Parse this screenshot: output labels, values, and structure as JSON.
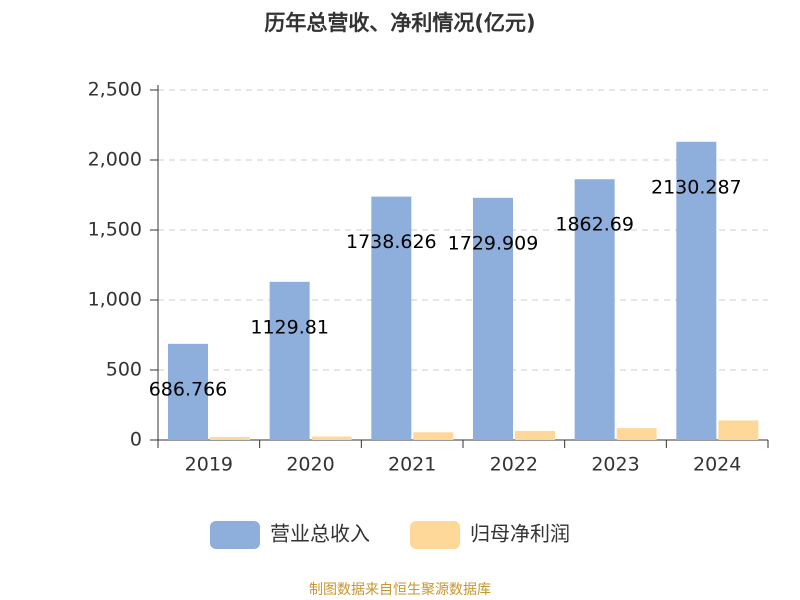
{
  "chart_data": {
    "type": "bar",
    "title": "历年总营收、净利情况(亿元)",
    "categories": [
      "2019",
      "2020",
      "2021",
      "2022",
      "2023",
      "2024"
    ],
    "series": [
      {
        "name": "营业总收入",
        "color": "#8eaedb",
        "values": [
          686.766,
          1129.81,
          1738.626,
          1729.909,
          1862.69,
          2130.287
        ]
      },
      {
        "name": "归母净利润",
        "color": "#fdd899",
        "values": [
          21,
          25,
          55,
          65,
          85,
          140
        ]
      }
    ],
    "ylim": [
      0,
      2500
    ],
    "yticks": [
      0,
      500,
      {
        "value": 1000,
        "label": "1,000"
      },
      {
        "value": 1500,
        "label": "1,500"
      },
      {
        "value": 2000,
        "label": "2,000"
      },
      {
        "value": 2500,
        "label": "2,500"
      }
    ],
    "grid": true,
    "legend": "bottom",
    "source": "制图数据来自恒生聚源数据库"
  }
}
